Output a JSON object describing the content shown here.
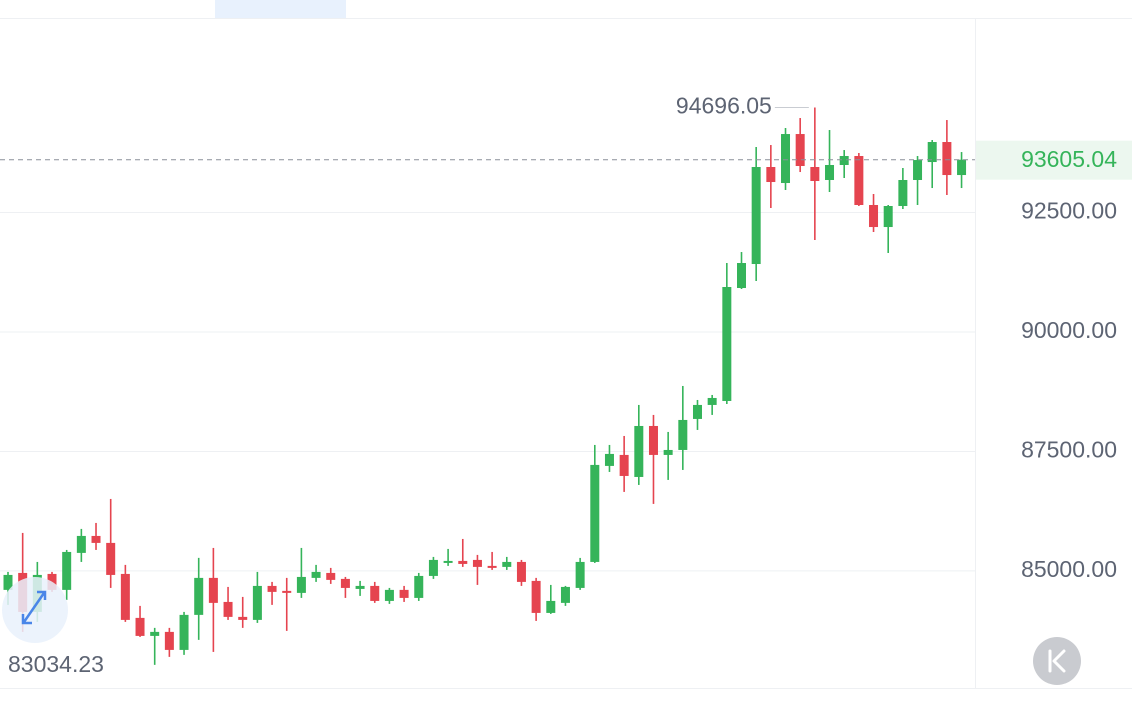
{
  "chart_data": {
    "type": "candlestick",
    "up_color": "#35b45a",
    "down_color": "#e5444f",
    "ylim": [
      82550,
      96570
    ],
    "yticks": [
      {
        "value": 85000,
        "label": "85000.00"
      },
      {
        "value": 87500,
        "label": "87500.00"
      },
      {
        "value": 90000,
        "label": "90000.00"
      },
      {
        "value": 92500,
        "label": "92500.00"
      }
    ],
    "grid": true,
    "open": [
      84603,
      84958,
      84142,
      84937,
      84603,
      85377,
      85732,
      85586,
      84937,
      84017,
      83640,
      83724,
      83347,
      84080,
      84854,
      84351,
      84038,
      83975,
      84686,
      84582,
      84540,
      84854,
      84958,
      84833,
      84623,
      84686,
      84372,
      84603,
      84435,
      84895,
      85167,
      85209,
      85230,
      85105,
      85084,
      85188,
      84791,
      84121,
      84331,
      84644,
      85188,
      87197,
      87427,
      86966,
      88033,
      87427,
      87531,
      88180,
      88473,
      88556,
      90920,
      91422,
      93452,
      93117,
      94142,
      93452,
      93180,
      93494,
      93682,
      92657,
      92196,
      92636,
      93180,
      93556,
      93975,
      93284
    ],
    "high": [
      84979,
      85795,
      85188,
      84979,
      85439,
      85879,
      86004,
      86506,
      85126,
      84268,
      83808,
      83808,
      84142,
      85272,
      85481,
      84665,
      84456,
      84979,
      84770,
      84854,
      85481,
      85126,
      85063,
      84874,
      84791,
      84770,
      84644,
      84686,
      84958,
      85293,
      85460,
      85669,
      85335,
      85397,
      85293,
      85230,
      84854,
      84707,
      84686,
      85272,
      87636,
      87636,
      87824,
      88473,
      88264,
      87908,
      88870,
      88577,
      88682,
      91443,
      91673,
      93870,
      93912,
      94268,
      94477,
      94696.05,
      94226,
      93807,
      93745,
      92887,
      92657,
      93431,
      93682,
      94017,
      94435,
      93765
    ],
    "low": [
      84289,
      83724,
      83933,
      84561,
      84393,
      85188,
      85439,
      84644,
      83933,
      83619,
      83034.23,
      83201,
      83243,
      83557,
      83305,
      83975,
      83808,
      83912,
      84289,
      83745,
      84435,
      84770,
      84728,
      84435,
      84477,
      84331,
      84310,
      84351,
      84372,
      84833,
      85105,
      85084,
      84707,
      85021,
      85021,
      84686,
      83954,
      84100,
      84268,
      84603,
      85167,
      87071,
      86653,
      86799,
      86402,
      86904,
      87113,
      87950,
      88264,
      88494,
      90899,
      91067,
      92594,
      92971,
      93347,
      91925,
      92929,
      93222,
      92636,
      92092,
      91653,
      92573,
      92657,
      93012,
      92866,
      93012
    ],
    "close": [
      84916,
      84142,
      84916,
      84603,
      85397,
      85732,
      85586,
      84916,
      83975,
      83640,
      83724,
      83347,
      84080,
      84854,
      84331,
      84038,
      83975,
      84686,
      84561,
      84540,
      84874,
      84979,
      84812,
      84644,
      84686,
      84372,
      84603,
      84435,
      84895,
      85230,
      85209,
      85146,
      85084,
      85063,
      85188,
      84770,
      84121,
      84372,
      84665,
      85188,
      87218,
      87448,
      86987,
      88033,
      87427,
      87531,
      88159,
      88473,
      88619,
      90941,
      91443,
      93452,
      93138,
      94142,
      93473,
      93159,
      93494,
      93682,
      92657,
      92196,
      92636,
      93180,
      93598,
      93975,
      93284,
      93605.04
    ]
  }
}
